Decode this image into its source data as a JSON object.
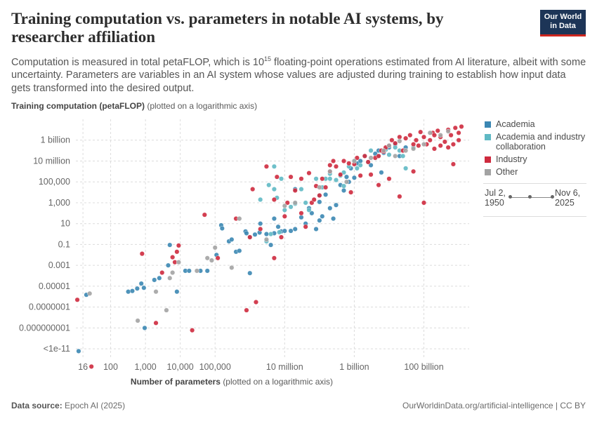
{
  "header": {
    "title": "Training computation vs. parameters in notable AI systems, by researcher affiliation",
    "subtitle_part1": "Computation is measured in total petaFLOP, which is 10",
    "subtitle_sup": "15",
    "subtitle_part2": " floating-point operations estimated from AI literature, albeit with some uncertainty. Parameters are variables in an AI system whose values are adjusted during training to establish how input data gets transformed into the desired output."
  },
  "logo": {
    "line1": "Our World",
    "line2": "in Data",
    "colors": {
      "bg": "#1d3557",
      "accent": "#ce261e"
    }
  },
  "footer": {
    "source_label": "Data source:",
    "source_value": "Epoch AI (2025)",
    "url_license": "OurWorldinData.org/artificial-intelligence | CC BY"
  },
  "legend": {
    "items": [
      {
        "label": "Academia",
        "color": "#3b87b3"
      },
      {
        "label": "Academia and industry collaboration",
        "color": "#5fb9c4"
      },
      {
        "label": "Industry",
        "color": "#ce2a3e"
      },
      {
        "label": "Other",
        "color": "#a3a3a3"
      }
    ]
  },
  "timeline": {
    "start": "Jul 2, 1950",
    "end": "Nov 6, 2025"
  },
  "chart_data": {
    "type": "scatter",
    "xlabel_bold": "Number of parameters",
    "xlabel_note": "(plotted on a logarithmic axis)",
    "ylabel_bold": "Training computation (petaFLOP)",
    "ylabel_note": "(plotted on a logarithmic axis)",
    "x_scale": "log",
    "y_scale": "log",
    "xlim": [
      10,
      2000000000000
    ],
    "ylim": [
      1e-12,
      100000000000
    ],
    "x_ticks": [
      {
        "value": 16,
        "label": "16"
      },
      {
        "value": 100,
        "label": "100"
      },
      {
        "value": 1000,
        "label": "1,000"
      },
      {
        "value": 10000,
        "label": "10,000"
      },
      {
        "value": 100000,
        "label": "100,000"
      },
      {
        "value": 10000000,
        "label": "10 million"
      },
      {
        "value": 1000000000,
        "label": "1 billion"
      },
      {
        "value": 100000000000,
        "label": "100 billion"
      }
    ],
    "y_ticks": [
      {
        "value": 1e-11,
        "label": "<1e-11"
      },
      {
        "value": 1e-09,
        "label": "0.000000001"
      },
      {
        "value": 1e-07,
        "label": "0.0000001"
      },
      {
        "value": 1e-05,
        "label": "0.00001"
      },
      {
        "value": 0.001,
        "label": "0.001"
      },
      {
        "value": 0.1,
        "label": "0.1"
      },
      {
        "value": 10,
        "label": "10"
      },
      {
        "value": 1000,
        "label": "1,000"
      },
      {
        "value": 100000,
        "label": "100,000"
      },
      {
        "value": 10000000,
        "label": "10 million"
      },
      {
        "value": 1000000000,
        "label": "1 billion"
      }
    ],
    "grid": true,
    "legend_position": "right",
    "series": [
      {
        "name": "Academia",
        "color": "#3b87b3",
        "points": [
          [
            12,
            6e-12
          ],
          [
            20,
            1.5e-06
          ],
          [
            320,
            3e-06
          ],
          [
            420,
            3.5e-06
          ],
          [
            580,
            6e-06
          ],
          [
            760,
            1.8e-05
          ],
          [
            900,
            7e-06
          ],
          [
            950,
            1e-09
          ],
          [
            1800,
            4e-05
          ],
          [
            2500,
            6e-05
          ],
          [
            4500,
            0.001
          ],
          [
            5000,
            0.09
          ],
          [
            8000,
            3e-06
          ],
          [
            14000,
            0.0003
          ],
          [
            18000,
            0.0003
          ],
          [
            38000,
            0.0003
          ],
          [
            60000,
            0.0003
          ],
          [
            110000,
            0.01
          ],
          [
            150000,
            7
          ],
          [
            160000,
            3.5
          ],
          [
            250000,
            0.2
          ],
          [
            300000,
            0.3
          ],
          [
            400000,
            0.02
          ],
          [
            500000,
            0.025
          ],
          [
            750000,
            1.8
          ],
          [
            800000,
            1.2
          ],
          [
            1000000,
            0.00018
          ],
          [
            1400000,
            0.9
          ],
          [
            1900000,
            1.4
          ],
          [
            2000000,
            10
          ],
          [
            3000000,
            1
          ],
          [
            4000000,
            0.09
          ],
          [
            5000000,
            1.2
          ],
          [
            5000000,
            30
          ],
          [
            6500000,
            5
          ],
          [
            8000000,
            1.8
          ],
          [
            10000000,
            2
          ],
          [
            15000000,
            2
          ],
          [
            20000000,
            20000
          ],
          [
            20000000,
            3
          ],
          [
            30000000,
            40
          ],
          [
            40000000,
            10
          ],
          [
            50000000,
            300
          ],
          [
            60000000,
            100
          ],
          [
            80000000,
            3
          ],
          [
            100000000,
            20
          ],
          [
            100000000,
            1200
          ],
          [
            120000000,
            50
          ],
          [
            150000000,
            6000
          ],
          [
            200000000,
            300
          ],
          [
            250000000,
            30
          ],
          [
            300000000,
            600
          ],
          [
            400000000,
            50000.0
          ],
          [
            500000000,
            15000.0
          ],
          [
            600000000,
            300000.0
          ],
          [
            700000000,
            100000.0
          ],
          [
            800000000,
            2000000.0
          ],
          [
            1000000000,
            250000.0
          ],
          [
            1200000000,
            6000000.0
          ],
          [
            1500000000,
            10000000.0
          ],
          [
            2000000000,
            30000000.0
          ],
          [
            3000000000,
            4000000.0
          ],
          [
            4000000000,
            50000000.0
          ],
          [
            5000000000,
            100000000.0
          ],
          [
            7000000000,
            60000000.0
          ],
          [
            10000000000,
            200000000.0
          ],
          [
            15000000000,
            400000000.0
          ],
          [
            20000000000,
            30000000.0
          ],
          [
            30000000000,
            200000000.0
          ],
          [
            6000000000,
            800000.0
          ]
        ]
      },
      {
        "name": "Academia and industry collaboration",
        "color": "#5fb9c4",
        "points": [
          [
            5000000,
            3000000.0
          ],
          [
            3500000,
            50000.0
          ],
          [
            5000000,
            20000.0
          ],
          [
            6000000,
            3000.0
          ],
          [
            8000000,
            200000.0
          ],
          [
            10000000,
            200
          ],
          [
            15000000,
            400
          ],
          [
            20000000,
            800
          ],
          [
            30000000,
            20000.0
          ],
          [
            40000000,
            1000.0
          ],
          [
            50000000,
            200
          ],
          [
            80000000,
            200000.0
          ],
          [
            100000000,
            5000.0
          ],
          [
            120000000,
            30000.0
          ],
          [
            150000000,
            200000.0
          ],
          [
            200000000,
            600000.0
          ],
          [
            300000000,
            150000.0
          ],
          [
            400000000,
            400000.0
          ],
          [
            500000000,
            800000.0
          ],
          [
            700000000,
            3000000.0
          ],
          [
            1000000000,
            10000000.0
          ],
          [
            1500000000,
            4000000.0
          ],
          [
            2000000000,
            30000000.0
          ],
          [
            3000000000,
            100000000.0
          ],
          [
            500000000,
            40000.0
          ],
          [
            2500000000,
            8000000.0
          ],
          [
            5000000000,
            30000000.0
          ],
          [
            8000000000,
            120000000.0
          ],
          [
            10000000000,
            40000000.0
          ],
          [
            15000000000,
            200000000.0
          ],
          [
            20000000000,
            100000000.0
          ],
          [
            25000000000,
            30000000.0
          ],
          [
            50000000000,
            200000000.0
          ],
          [
            30000000000,
            2000000.0
          ],
          [
            1200000000,
            2000000.0
          ],
          [
            200000000,
            200000.0
          ],
          [
            2000000,
            2000.0
          ],
          [
            1000000,
            0.5
          ],
          [
            3000000,
            0.2
          ],
          [
            7000000,
            1.5
          ],
          [
            4000000,
            1
          ]
        ]
      },
      {
        "name": "Industry",
        "color": "#ce2a3e",
        "points": [
          [
            11,
            5e-07
          ],
          [
            28,
            2e-13
          ],
          [
            800,
            0.013
          ],
          [
            2000,
            3e-09
          ],
          [
            3000,
            0.0002
          ],
          [
            6000,
            0.006
          ],
          [
            7000,
            0.002
          ],
          [
            8000,
            0.02
          ],
          [
            9000,
            0.08
          ],
          [
            22000,
            6e-10
          ],
          [
            50000,
            70
          ],
          [
            120000,
            0.005
          ],
          [
            400000,
            30
          ],
          [
            800000,
            5e-08
          ],
          [
            1200000,
            20000.0
          ],
          [
            2000000,
            3
          ],
          [
            3000000,
            3000000.0
          ],
          [
            5000000,
            2000.0
          ],
          [
            6000000,
            300000.0
          ],
          [
            8000000,
            0.5
          ],
          [
            10000000,
            50
          ],
          [
            12000000,
            1000.0
          ],
          [
            15000000,
            300000.0
          ],
          [
            20000000,
            15000.0
          ],
          [
            30000000,
            200000.0
          ],
          [
            40000000,
            5
          ],
          [
            50000000,
            700000.0
          ],
          [
            60000000,
            1000.0
          ],
          [
            70000000,
            2000.0
          ],
          [
            80000000,
            40000.0
          ],
          [
            100000000,
            5000.0
          ],
          [
            120000000,
            200000.0
          ],
          [
            150000000,
            30000.0
          ],
          [
            200000000,
            1000000.0
          ],
          [
            250000000,
            10000000.0
          ],
          [
            300000000,
            3000000.0
          ],
          [
            400000000,
            500000.0
          ],
          [
            500000000,
            10000000.0
          ],
          [
            700000000,
            6000000.0
          ],
          [
            800000000,
            10000.0
          ],
          [
            1000000000,
            5000000.0
          ],
          [
            1200000000,
            20000000.0
          ],
          [
            1500000000,
            400000.0
          ],
          [
            2000000000,
            30000000.0
          ],
          [
            2500000000,
            8000000.0
          ],
          [
            3000000000,
            500000.0
          ],
          [
            4000000000,
            20000000.0
          ],
          [
            5000000000,
            30000000.0
          ],
          [
            6000000000,
            100000000.0
          ],
          [
            7000000000,
            80000000.0
          ],
          [
            8000000000,
            200000000.0
          ],
          [
            10000000000,
            300000000.0
          ],
          [
            12000000000,
            1000000000.0
          ],
          [
            15000000000,
            500000000.0
          ],
          [
            20000000000,
            2000000000.0
          ],
          [
            25000000000,
            100000000.0
          ],
          [
            30000000000,
            1500000000.0
          ],
          [
            40000000000,
            3000000000.0
          ],
          [
            50000000000,
            400000000.0
          ],
          [
            60000000000,
            1000000000.0
          ],
          [
            70000000000,
            300000000.0
          ],
          [
            80000000000,
            6000000000.0
          ],
          [
            100000000000,
            2000000000.0
          ],
          [
            120000000000,
            400000000.0
          ],
          [
            150000000000,
            1000000000.0
          ],
          [
            180000000000,
            5000000000.0
          ],
          [
            200000000000,
            3000000000.0
          ],
          [
            250000000000,
            8000000000.0
          ],
          [
            300000000000,
            2000000000.0
          ],
          [
            400000000000,
            700000000.0
          ],
          [
            500000000000,
            10000000000.0
          ],
          [
            600000000000,
            3000000000.0
          ],
          [
            700000000000,
            400000000.0
          ],
          [
            800000000000,
            15000000000.0
          ],
          [
            1000000000000,
            5000000000.0
          ],
          [
            1200000000000,
            20000000000.0
          ],
          [
            1000000000000,
            1000000000.0
          ],
          [
            700000000000,
            5000000.0
          ],
          [
            500000000000,
            200000000.0
          ],
          [
            300000000000,
            300000000.0
          ],
          [
            200000000000,
            150000000.0
          ],
          [
            100000000000,
            1000.0
          ],
          [
            50000000000,
            1000000.0
          ],
          [
            20000000000,
            4000.0
          ],
          [
            10000000000,
            200000.0
          ],
          [
            5000000000,
            50000.0
          ],
          [
            200000000,
            4000000.0
          ],
          [
            30000000,
            100
          ],
          [
            5000000,
            0.005
          ],
          [
            1000000,
            0.5
          ],
          [
            1500000,
            3e-07
          ]
        ]
      },
      {
        "name": "Other",
        "color": "#a3a3a3",
        "points": [
          [
            25,
            2e-06
          ],
          [
            600,
            5e-09
          ],
          [
            2000,
            3e-06
          ],
          [
            4000,
            5e-08
          ],
          [
            5000,
            6e-05
          ],
          [
            6000,
            0.0002
          ],
          [
            9000,
            0.002
          ],
          [
            30000,
            0.0003
          ],
          [
            60000,
            0.005
          ],
          [
            80000,
            0.003
          ],
          [
            100000,
            0.05
          ],
          [
            300000,
            0.0006
          ],
          [
            500000,
            30
          ],
          [
            3000000,
            0.3
          ],
          [
            10000000,
            500
          ],
          [
            20000000,
            1000.0
          ],
          [
            100000000,
            30000.0
          ],
          [
            200000000,
            1000000.0
          ],
          [
            600000000,
            100000.0
          ],
          [
            1000000000,
            10000000.0
          ],
          [
            3000000000,
            20000000.0
          ],
          [
            7000000000,
            100000000.0
          ],
          [
            10000000000,
            300000000.0
          ],
          [
            20000000000,
            800000000.0
          ],
          [
            30000000000,
            100000000.0
          ],
          [
            100000000000,
            400000000.0
          ],
          [
            150000000000,
            5000000000.0
          ],
          [
            300000000000,
            3000000000.0
          ],
          [
            500000000000,
            7000000000.0
          ],
          [
            50000000000,
            150000000.0
          ],
          [
            15000000000,
            30000000.0
          ]
        ]
      }
    ]
  }
}
